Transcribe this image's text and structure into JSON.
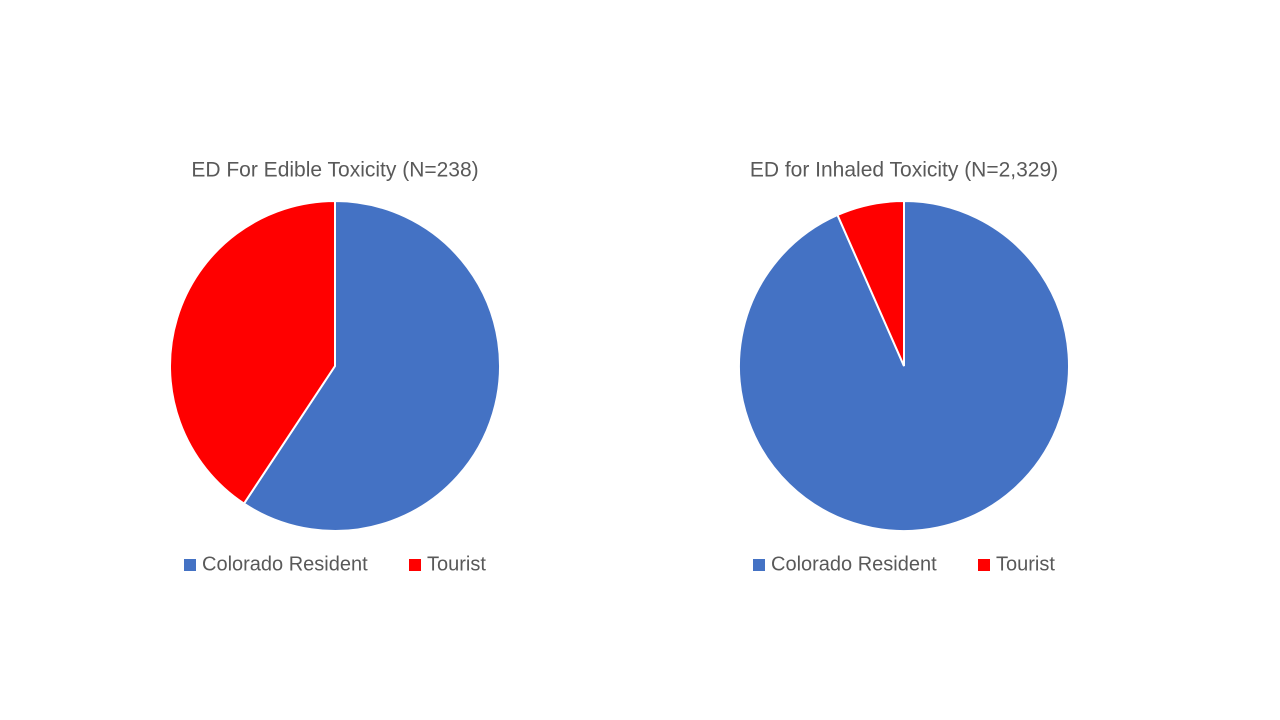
{
  "chart_data": [
    {
      "type": "pie",
      "title": "ED For Edible Toxicity (N=238)",
      "categories": [
        "Colorado Resident",
        "Tourist"
      ],
      "values": [
        59.3,
        40.7
      ],
      "colors": [
        "#4472c4",
        "#ff0000"
      ]
    },
    {
      "type": "pie",
      "title": "ED for Inhaled Toxicity (N=2,329)",
      "categories": [
        "Colorado Resident",
        "Tourist"
      ],
      "values": [
        93.4,
        6.6
      ],
      "colors": [
        "#4472c4",
        "#ff0000"
      ]
    }
  ]
}
